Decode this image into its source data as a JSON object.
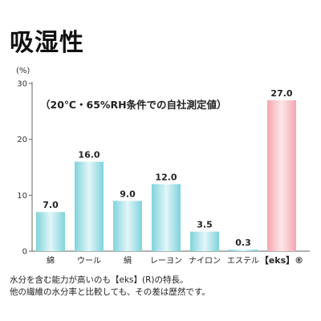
{
  "title": "吸湿性",
  "chart_data": {
    "type": "bar",
    "unit_label": "(%)",
    "annotation": "（20℃・65%RH条件での自社測定値）",
    "categories": [
      "綿",
      "ウール",
      "絹",
      "レーヨン",
      "ナイロン",
      "エステル",
      "【eks】®"
    ],
    "values": [
      7.0,
      16.0,
      9.0,
      12.0,
      3.5,
      0.3,
      27.0
    ],
    "value_labels": [
      "7.0",
      "16.0",
      "9.0",
      "12.0",
      "3.5",
      "0.3",
      "27.0"
    ],
    "highlight_index": 6,
    "ylim": [
      0,
      30
    ],
    "yticks": [
      "0",
      "10",
      "20",
      "30"
    ],
    "ytick_values": [
      0,
      10,
      20,
      30
    ],
    "grid": false,
    "colors": {
      "bar": "#7fd3dc",
      "bar_light": "#e2f6f8",
      "highlight": "#f2a7ae",
      "highlight_light": "#fde6e8",
      "axis": "#666666"
    }
  },
  "notes": [
    "水分を含む能力が高いのも【eks】(R)の特長。",
    "他の繊維の水分率と比較しても、その差は歴然です。"
  ]
}
